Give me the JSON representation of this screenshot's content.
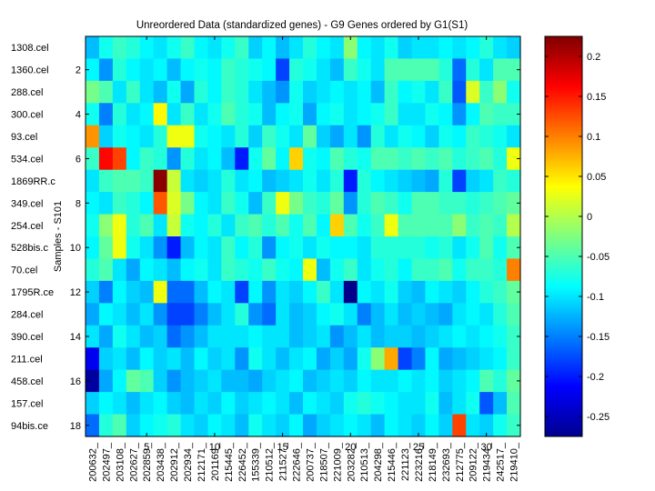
{
  "chart_data": {
    "type": "heatmap",
    "title": "Unreordered Data (standardized genes) - G9 Genes ordered by G1(S1)",
    "ylabel": "Samples - S101",
    "row_labels": [
      "1308.cel",
      "1360.cel",
      "288.cel",
      "300.cel",
      "93.cel",
      "534.cel",
      "1869RR.c",
      "349.cel",
      "254.cel",
      "528bis.c",
      "70.cel",
      "1795R.ce",
      "284.cel",
      "390.cel",
      "211.cel",
      "458.cel",
      "157.cel",
      "94bis.ce"
    ],
    "col_labels": [
      "200632_",
      "202497_",
      "203108_",
      "202627_",
      "202859_",
      "203438_",
      "202912_",
      "202934_",
      "212171_",
      "201169_",
      "215445_",
      "226452_",
      "155339_",
      "210512_",
      "211527_",
      "222646_",
      "200737_",
      "218507_",
      "221009_",
      "203282_",
      "210513_",
      "204298_",
      "215446_",
      "221123_",
      "223216_",
      "218149_",
      "232693_",
      "212775_",
      "209122_",
      "219434_",
      "242517_",
      "219410_"
    ],
    "y_ticks": [
      2,
      4,
      6,
      8,
      10,
      12,
      14,
      16,
      18
    ],
    "x_ticks": [
      5,
      10,
      15,
      20,
      25,
      30
    ],
    "colorbar_ticks": [
      0.2,
      0.15,
      0.1,
      0.05,
      0,
      -0.05,
      -0.1,
      -0.15,
      -0.2,
      -0.25
    ],
    "colorbar_tick_labels": [
      "0.2",
      "0.15",
      "0.1",
      "0.05",
      "0",
      "-0.05",
      "-0.1",
      "-0.15",
      "-0.2",
      "-0.25"
    ],
    "clim": [
      -0.275,
      0.225
    ],
    "colormap": "jet",
    "values": [
      [
        -0.12,
        -0.08,
        -0.06,
        -0.07,
        -0.09,
        -0.1,
        -0.08,
        -0.06,
        -0.09,
        -0.1,
        -0.08,
        -0.06,
        -0.11,
        -0.09,
        -0.12,
        -0.1,
        -0.07,
        -0.09,
        -0.1,
        -0.02,
        -0.09,
        -0.1,
        -0.08,
        -0.11,
        -0.1,
        -0.1,
        -0.09,
        -0.1,
        -0.09,
        -0.07,
        -0.1,
        -0.11
      ],
      [
        -0.09,
        -0.14,
        -0.07,
        -0.09,
        -0.1,
        -0.09,
        -0.12,
        -0.09,
        -0.08,
        -0.09,
        -0.06,
        -0.07,
        -0.08,
        -0.09,
        -0.18,
        -0.07,
        -0.08,
        -0.1,
        -0.12,
        -0.06,
        -0.08,
        -0.1,
        -0.05,
        -0.05,
        -0.05,
        -0.05,
        -0.07,
        -0.16,
        -0.07,
        -0.1,
        -0.05,
        -0.05
      ],
      [
        -0.03,
        -0.05,
        -0.1,
        -0.06,
        -0.1,
        -0.12,
        -0.08,
        -0.13,
        -0.07,
        -0.09,
        -0.06,
        -0.07,
        -0.1,
        -0.12,
        -0.14,
        -0.08,
        -0.11,
        -0.1,
        -0.09,
        -0.1,
        -0.09,
        -0.12,
        -0.06,
        -0.09,
        -0.08,
        -0.1,
        -0.06,
        -0.17,
        0.02,
        -0.06,
        -0.02,
        -0.08
      ],
      [
        -0.08,
        -0.15,
        -0.07,
        -0.1,
        -0.09,
        0.04,
        -0.1,
        -0.06,
        -0.1,
        -0.08,
        -0.05,
        -0.07,
        -0.08,
        -0.12,
        -0.09,
        -0.08,
        -0.13,
        -0.09,
        -0.08,
        -0.1,
        -0.09,
        -0.08,
        -0.06,
        -0.1,
        -0.1,
        -0.08,
        -0.09,
        -0.14,
        -0.09,
        -0.05,
        -0.06,
        -0.06
      ],
      [
        0.09,
        -0.11,
        -0.08,
        -0.09,
        -0.1,
        -0.07,
        0.03,
        0.03,
        -0.08,
        -0.09,
        -0.1,
        -0.07,
        -0.11,
        -0.06,
        -0.08,
        -0.1,
        -0.04,
        -0.11,
        -0.13,
        -0.1,
        -0.14,
        -0.07,
        -0.1,
        -0.08,
        -0.09,
        -0.11,
        -0.08,
        -0.09,
        -0.06,
        -0.07,
        -0.08,
        -0.1
      ],
      [
        -0.06,
        0.16,
        0.13,
        -0.09,
        -0.06,
        -0.07,
        -0.14,
        -0.07,
        -0.1,
        -0.09,
        -0.12,
        -0.2,
        -0.08,
        -0.04,
        -0.09,
        0.06,
        -0.08,
        -0.09,
        -0.05,
        -0.07,
        -0.08,
        -0.05,
        -0.05,
        -0.06,
        -0.05,
        -0.06,
        -0.05,
        -0.07,
        -0.06,
        -0.05,
        -0.07,
        0.03
      ],
      [
        -0.1,
        -0.06,
        -0.05,
        -0.05,
        -0.06,
        0.22,
        0.01,
        -0.1,
        -0.11,
        -0.1,
        -0.07,
        -0.1,
        -0.09,
        -0.12,
        -0.11,
        -0.1,
        -0.08,
        -0.1,
        -0.07,
        -0.2,
        -0.07,
        -0.09,
        -0.1,
        -0.11,
        -0.12,
        -0.13,
        -0.07,
        -0.18,
        -0.11,
        -0.1,
        -0.06,
        -0.07
      ],
      [
        -0.09,
        -0.1,
        -0.06,
        -0.07,
        -0.09,
        0.12,
        0.02,
        -0.03,
        -0.09,
        -0.1,
        -0.06,
        -0.08,
        -0.12,
        -0.06,
        0.03,
        -0.03,
        -0.06,
        -0.07,
        -0.04,
        -0.14,
        -0.07,
        -0.05,
        -0.06,
        -0.08,
        -0.05,
        -0.05,
        -0.06,
        -0.06,
        -0.07,
        -0.06,
        -0.05,
        -0.04
      ],
      [
        -0.08,
        -0.02,
        0.03,
        -0.07,
        -0.05,
        -0.1,
        0.01,
        -0.08,
        -0.09,
        -0.07,
        -0.1,
        -0.06,
        -0.05,
        -0.07,
        -0.05,
        -0.08,
        -0.05,
        -0.09,
        0.06,
        -0.05,
        -0.08,
        -0.06,
        0.03,
        -0.05,
        -0.05,
        -0.05,
        -0.05,
        -0.02,
        -0.06,
        -0.05,
        -0.06,
        0.0
      ],
      [
        -0.09,
        -0.04,
        0.03,
        -0.08,
        -0.1,
        -0.14,
        -0.2,
        -0.12,
        -0.09,
        -0.1,
        -0.06,
        -0.09,
        -0.07,
        -0.14,
        -0.09,
        -0.08,
        -0.1,
        -0.08,
        -0.09,
        -0.09,
        -0.1,
        -0.07,
        -0.07,
        -0.07,
        -0.07,
        -0.08,
        -0.07,
        -0.1,
        -0.08,
        -0.05,
        -0.08,
        -0.05
      ],
      [
        -0.07,
        -0.05,
        -0.1,
        -0.13,
        -0.09,
        -0.1,
        -0.12,
        -0.09,
        -0.08,
        -0.1,
        -0.06,
        -0.07,
        -0.08,
        -0.06,
        -0.08,
        -0.09,
        0.03,
        -0.12,
        -0.08,
        -0.06,
        -0.1,
        -0.08,
        -0.07,
        -0.09,
        -0.06,
        -0.06,
        -0.05,
        -0.08,
        -0.06,
        -0.06,
        -0.07,
        0.1
      ],
      [
        -0.11,
        -0.15,
        -0.09,
        -0.11,
        -0.12,
        0.03,
        -0.16,
        -0.16,
        -0.12,
        -0.09,
        -0.1,
        -0.18,
        -0.09,
        -0.14,
        -0.1,
        -0.11,
        -0.09,
        -0.06,
        -0.1,
        -0.27,
        -0.09,
        -0.1,
        -0.08,
        -0.11,
        -0.12,
        -0.09,
        -0.1,
        -0.11,
        -0.09,
        -0.07,
        -0.06,
        -0.04
      ],
      [
        -0.13,
        -0.09,
        -0.1,
        -0.12,
        -0.1,
        -0.14,
        -0.18,
        -0.18,
        -0.15,
        -0.12,
        -0.1,
        -0.07,
        -0.14,
        -0.16,
        -0.1,
        -0.12,
        -0.11,
        -0.09,
        -0.08,
        -0.1,
        -0.15,
        -0.12,
        -0.1,
        -0.12,
        -0.11,
        -0.12,
        -0.13,
        -0.1,
        -0.09,
        -0.1,
        -0.07,
        -0.05
      ],
      [
        -0.1,
        -0.13,
        -0.08,
        -0.1,
        -0.12,
        -0.11,
        -0.16,
        -0.14,
        -0.12,
        -0.1,
        -0.1,
        -0.1,
        -0.09,
        -0.1,
        -0.1,
        -0.12,
        -0.11,
        -0.1,
        -0.14,
        -0.12,
        -0.1,
        -0.12,
        -0.11,
        -0.11,
        -0.12,
        -0.11,
        -0.1,
        -0.09,
        -0.1,
        -0.09,
        -0.08,
        -0.06
      ],
      [
        -0.22,
        -0.11,
        -0.1,
        -0.12,
        -0.09,
        -0.11,
        -0.1,
        -0.12,
        -0.09,
        -0.11,
        -0.1,
        -0.14,
        -0.08,
        -0.1,
        -0.12,
        -0.1,
        -0.09,
        -0.13,
        -0.11,
        -0.13,
        -0.08,
        -0.02,
        0.08,
        -0.18,
        -0.15,
        -0.09,
        -0.13,
        -0.12,
        -0.11,
        -0.1,
        -0.09,
        -0.06
      ],
      [
        -0.26,
        -0.13,
        -0.09,
        -0.04,
        -0.05,
        -0.11,
        -0.14,
        -0.12,
        -0.11,
        -0.1,
        -0.12,
        -0.12,
        -0.13,
        -0.11,
        -0.1,
        -0.09,
        -0.12,
        -0.11,
        -0.1,
        -0.11,
        -0.09,
        -0.1,
        -0.1,
        -0.09,
        -0.1,
        -0.09,
        -0.11,
        -0.1,
        -0.09,
        -0.05,
        -0.07,
        -0.04
      ],
      [
        -0.11,
        -0.09,
        -0.1,
        -0.12,
        -0.1,
        -0.09,
        -0.11,
        -0.12,
        -0.1,
        -0.11,
        -0.09,
        -0.11,
        -0.1,
        -0.09,
        -0.1,
        -0.12,
        -0.09,
        -0.1,
        -0.11,
        -0.08,
        -0.07,
        -0.08,
        -0.09,
        -0.1,
        -0.1,
        -0.08,
        -0.12,
        -0.1,
        -0.08,
        -0.17,
        -0.12,
        -0.05
      ],
      [
        -0.16,
        -0.07,
        -0.05,
        -0.11,
        -0.09,
        -0.08,
        -0.07,
        -0.1,
        -0.11,
        -0.09,
        -0.1,
        -0.12,
        -0.08,
        -0.1,
        -0.11,
        -0.09,
        -0.13,
        -0.11,
        -0.1,
        -0.09,
        -0.1,
        -0.12,
        -0.09,
        -0.1,
        -0.11,
        -0.09,
        -0.11,
        0.13,
        -0.1,
        -0.11,
        -0.08,
        -0.06
      ]
    ]
  }
}
